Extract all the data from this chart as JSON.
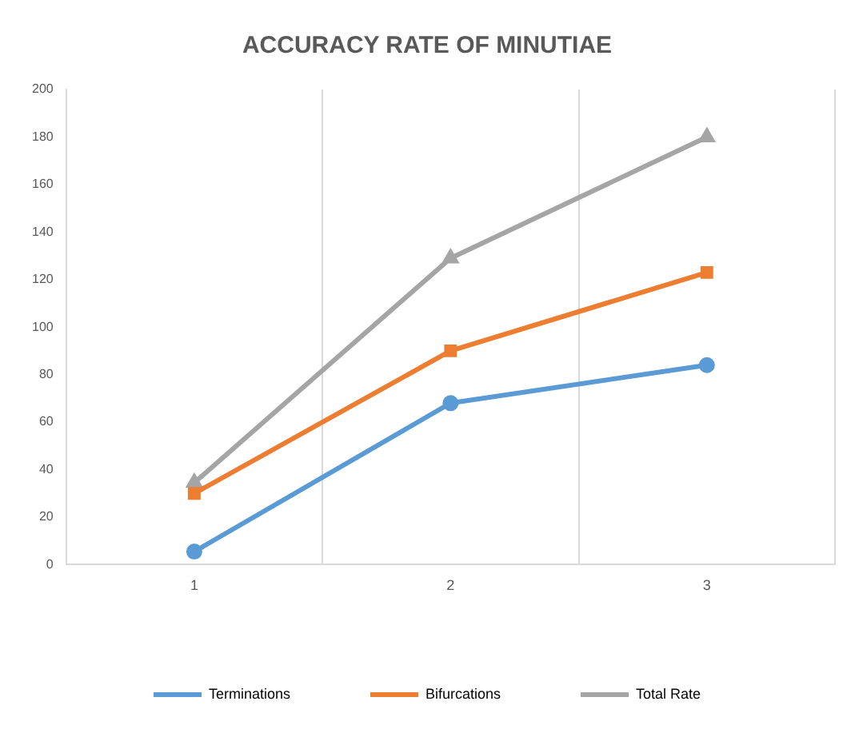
{
  "chart_data": {
    "type": "line",
    "title": "ACCURACY RATE OF MINUTIAE",
    "categories": [
      "1",
      "2",
      "3"
    ],
    "series": [
      {
        "name": "Terminations",
        "color": "#5b9bd5",
        "values": [
          5.5,
          68,
          84
        ],
        "marker": "circle"
      },
      {
        "name": "Bifurcations",
        "color": "#ed7d31",
        "values": [
          30,
          90,
          123
        ],
        "marker": "square"
      },
      {
        "name": "Total Rate",
        "color": "#a5a5a5",
        "values": [
          34.5,
          129,
          180
        ],
        "marker": "triangle"
      }
    ],
    "ylim": [
      0,
      200
    ],
    "yticks": [
      0,
      20,
      40,
      60,
      80,
      100,
      120,
      140,
      160,
      180,
      200
    ],
    "grid": "x",
    "legend": "bottom",
    "line_style": "solid"
  }
}
